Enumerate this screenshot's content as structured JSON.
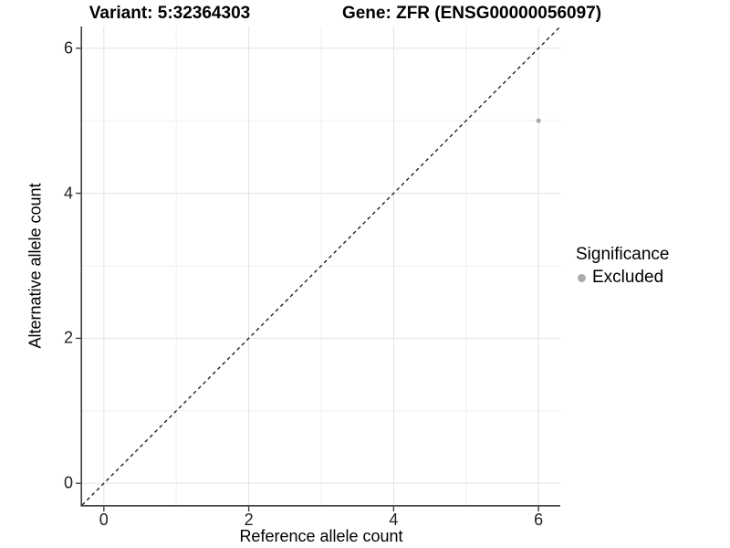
{
  "titles": {
    "variant": "Variant: 5:32364303",
    "gene": "Gene: ZFR (ENSG00000056097)"
  },
  "legend": {
    "title": "Significance",
    "items": [
      {
        "label": "Excluded",
        "color": "#ababab",
        "swatch": "circle-icon"
      }
    ]
  },
  "colors": {
    "background": "#ffffff",
    "grid_major": "#e3e3e3",
    "grid_minor": "#efefef",
    "axis_line": "#404040",
    "tick_text": "#1f1f1f",
    "identity_line": "#111111",
    "point": "#ababab"
  },
  "chart_data": {
    "type": "scatter",
    "title": "Variant: 5:32364303   /   Gene: ZFR (ENSG00000056097)",
    "xlabel": "Reference allele count",
    "ylabel": "Alternative allele count",
    "xlim": [
      -0.3,
      6.3
    ],
    "ylim": [
      -0.3,
      6.3
    ],
    "x_ticks": [
      0,
      2,
      4,
      6
    ],
    "y_ticks": [
      0,
      2,
      4,
      6
    ],
    "minor_x_gridlines": [
      1,
      3,
      5
    ],
    "minor_y_gridlines": [
      1,
      3,
      5
    ],
    "grid": true,
    "legend_position": "right",
    "identity_line": {
      "style": "dashed",
      "from": [
        -0.3,
        -0.3
      ],
      "to": [
        6.3,
        6.3
      ]
    },
    "series": [
      {
        "name": "Excluded",
        "color": "#ababab",
        "points": [
          {
            "x": 6,
            "y": 5
          }
        ]
      }
    ]
  }
}
